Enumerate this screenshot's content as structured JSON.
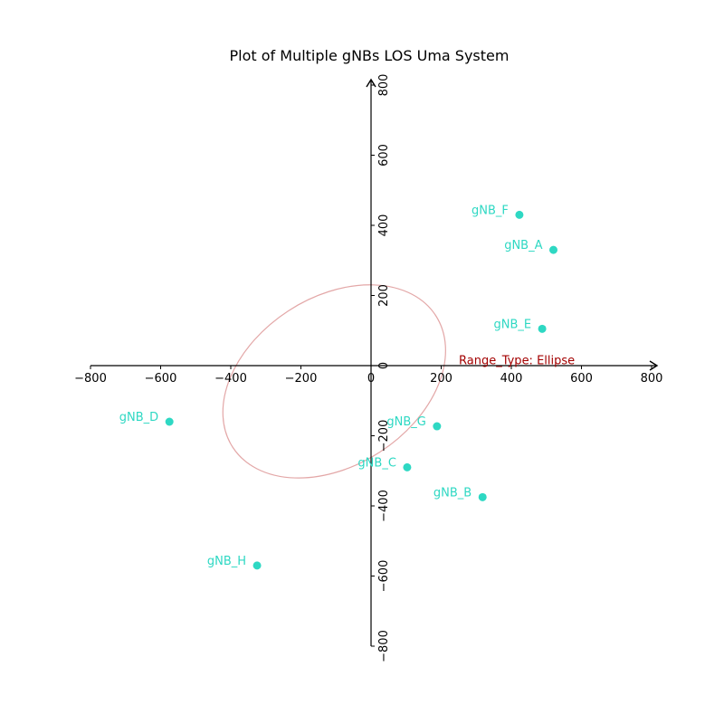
{
  "chart_data": {
    "type": "scatter",
    "title": "Plot of Multiple gNBs LOS Uma System",
    "xlabel": "",
    "ylabel": "",
    "xlim": [
      -800,
      800
    ],
    "ylim": [
      -800,
      800
    ],
    "x_ticks": [
      "−800",
      "−600",
      "−400",
      "−200",
      "0",
      "200",
      "400",
      "600",
      "800"
    ],
    "y_ticks": [
      "−800",
      "−600",
      "−400",
      "−200",
      "0",
      "200",
      "400",
      "600",
      "800"
    ],
    "grid": false,
    "axes_style": "centered-spines-with-arrows",
    "point_color": "#2ed8c3",
    "points": [
      {
        "label": "gNB_A",
        "x": 520,
        "y": 330
      },
      {
        "label": "gNB_B",
        "x": 318,
        "y": -375
      },
      {
        "label": "gNB_C",
        "x": 103,
        "y": -290
      },
      {
        "label": "gNB_D",
        "x": -575,
        "y": -160
      },
      {
        "label": "gNB_E",
        "x": 488,
        "y": 105
      },
      {
        "label": "gNB_F",
        "x": 423,
        "y": 430
      },
      {
        "label": "gNB_G",
        "x": 188,
        "y": -173
      },
      {
        "label": "gNB_H",
        "x": -325,
        "y": -570
      }
    ],
    "ellipse": {
      "center": [
        -105,
        -45
      ],
      "semi_major": 345,
      "semi_minor": 240,
      "rotation_deg": 33,
      "color": "#e3a7a7"
    },
    "annotation": {
      "text": "Range_Type: Ellipse",
      "x": 240,
      "y": 20,
      "color": "#a30000"
    }
  }
}
